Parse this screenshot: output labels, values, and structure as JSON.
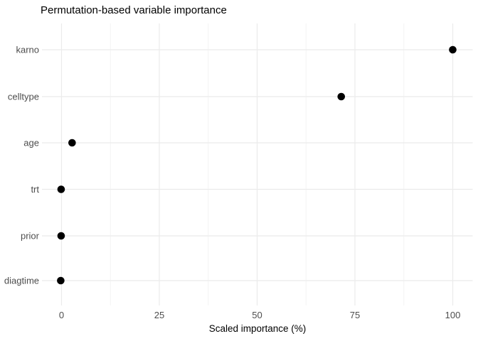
{
  "chart_data": {
    "type": "scatter",
    "subtype": "cleveland-dot-plot",
    "title": "Permutation-based variable importance",
    "xlabel": "Scaled importance (%)",
    "ylabel": "",
    "categories": [
      "karno",
      "celltype",
      "age",
      "trt",
      "prior",
      "diagtime"
    ],
    "values": [
      100,
      71.5,
      2.7,
      -0.1,
      -0.1,
      -0.2
    ],
    "x_ticks": [
      0,
      25,
      50,
      75,
      100
    ],
    "x_minor_ticks": [
      12.5,
      37.5,
      62.5,
      87.5
    ],
    "xlim": [
      -5,
      105
    ],
    "grid": "major-and-minor, no panel border (theme_minimal)",
    "legend_position": "none",
    "point_color": "#000000",
    "grid_major_color": "#ebebeb",
    "grid_minor_color": "#f2f2f2",
    "axis_text_color": "#4d4d4d",
    "title_color": "#000000",
    "background_color": "#ffffff"
  }
}
